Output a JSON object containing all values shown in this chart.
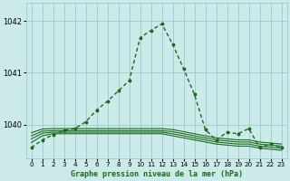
{
  "title": "Graphe pression niveau de la mer (hPa)",
  "bg_color": "#cceaea",
  "grid_color": "#99cccc",
  "line_color": "#1a6b1a",
  "xlim": [
    -0.5,
    23.5
  ],
  "ylim": [
    1039.35,
    1042.35
  ],
  "yticks": [
    1040,
    1041,
    1042
  ],
  "xtick_labels": [
    "0",
    "1",
    "2",
    "3",
    "4",
    "5",
    "6",
    "7",
    "8",
    "9",
    "10",
    "11",
    "12",
    "13",
    "14",
    "15",
    "16",
    "17",
    "18",
    "19",
    "20",
    "21",
    "22",
    "23"
  ],
  "xticks": [
    0,
    1,
    2,
    3,
    4,
    5,
    6,
    7,
    8,
    9,
    10,
    11,
    12,
    13,
    14,
    15,
    16,
    17,
    18,
    19,
    20,
    21,
    22,
    23
  ],
  "series": [
    {
      "x": [
        0,
        1,
        2,
        3,
        4,
        5,
        6,
        7,
        8,
        9,
        10,
        11,
        12,
        13,
        14,
        15,
        16,
        17,
        18,
        19,
        20,
        21,
        22,
        23
      ],
      "y": [
        1039.65,
        1039.78,
        1039.82,
        1039.82,
        1039.82,
        1039.82,
        1039.82,
        1039.82,
        1039.82,
        1039.82,
        1039.82,
        1039.82,
        1039.82,
        1039.78,
        1039.74,
        1039.7,
        1039.66,
        1039.62,
        1039.6,
        1039.58,
        1039.58,
        1039.54,
        1039.52,
        1039.5
      ],
      "marker": false,
      "lw": 0.8,
      "ls": "-"
    },
    {
      "x": [
        0,
        1,
        2,
        3,
        4,
        5,
        6,
        7,
        8,
        9,
        10,
        11,
        12,
        13,
        14,
        15,
        16,
        17,
        18,
        19,
        20,
        21,
        22,
        23
      ],
      "y": [
        1039.72,
        1039.83,
        1039.85,
        1039.85,
        1039.85,
        1039.85,
        1039.85,
        1039.85,
        1039.85,
        1039.85,
        1039.85,
        1039.85,
        1039.85,
        1039.82,
        1039.78,
        1039.74,
        1039.7,
        1039.66,
        1039.64,
        1039.62,
        1039.62,
        1039.58,
        1039.56,
        1039.54
      ],
      "marker": false,
      "lw": 0.8,
      "ls": "-"
    },
    {
      "x": [
        0,
        1,
        2,
        3,
        4,
        5,
        6,
        7,
        8,
        9,
        10,
        11,
        12,
        13,
        14,
        15,
        16,
        17,
        18,
        19,
        20,
        21,
        22,
        23
      ],
      "y": [
        1039.78,
        1039.87,
        1039.88,
        1039.88,
        1039.88,
        1039.88,
        1039.88,
        1039.88,
        1039.88,
        1039.88,
        1039.88,
        1039.88,
        1039.88,
        1039.86,
        1039.82,
        1039.78,
        1039.74,
        1039.7,
        1039.68,
        1039.66,
        1039.66,
        1039.62,
        1039.6,
        1039.58
      ],
      "marker": false,
      "lw": 0.8,
      "ls": "-"
    },
    {
      "x": [
        0,
        1,
        2,
        3,
        4,
        5,
        6,
        7,
        8,
        9,
        10,
        11,
        12,
        13,
        14,
        15,
        16,
        17,
        18,
        19,
        20,
        21,
        22,
        23
      ],
      "y": [
        1039.84,
        1039.91,
        1039.92,
        1039.92,
        1039.92,
        1039.92,
        1039.92,
        1039.92,
        1039.92,
        1039.92,
        1039.92,
        1039.92,
        1039.92,
        1039.9,
        1039.86,
        1039.82,
        1039.78,
        1039.74,
        1039.72,
        1039.7,
        1039.7,
        1039.66,
        1039.64,
        1039.62
      ],
      "marker": false,
      "lw": 0.8,
      "ls": "-"
    },
    {
      "x": [
        0,
        1,
        2,
        3,
        4,
        5,
        6,
        7,
        8,
        9,
        10,
        11,
        12,
        13,
        14,
        15,
        16,
        17,
        18,
        19,
        20,
        21,
        22,
        23
      ],
      "y": [
        1039.55,
        1039.7,
        1039.8,
        1039.88,
        1039.92,
        1040.05,
        1040.28,
        1040.45,
        1040.65,
        1040.85,
        1041.68,
        1041.82,
        1041.95,
        1041.55,
        1041.08,
        1040.58,
        1039.9,
        1039.7,
        1039.85,
        1039.82,
        1039.92,
        1039.55,
        1039.62,
        1039.55
      ],
      "marker": true,
      "lw": 1.0,
      "ls": "--"
    }
  ]
}
